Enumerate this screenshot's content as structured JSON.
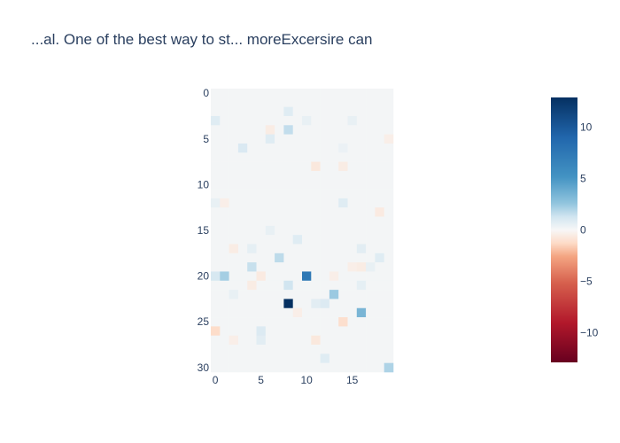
{
  "chart_data": {
    "type": "heatmap",
    "title": "...al. One of the best way to st... moreExcersire can",
    "x_ticks": [
      0,
      5,
      10,
      15
    ],
    "y_ticks": [
      0,
      5,
      10,
      15,
      20,
      25,
      30
    ],
    "xlim": [
      -0.5,
      19.5
    ],
    "ylim": [
      -0.5,
      30.5
    ],
    "rows": 31,
    "cols": 20,
    "baseline": 0.15,
    "colorscale": "RdBu",
    "zmin": -12.9,
    "zmax": 12.9,
    "colorbar_ticks": [
      10,
      5,
      0,
      -5,
      -10
    ],
    "cells": [
      {
        "x": 8,
        "y": 23,
        "z": 12.9
      },
      {
        "x": 10,
        "y": 20,
        "z": 7.5
      },
      {
        "x": 16,
        "y": 24,
        "z": 3.4
      },
      {
        "x": 1,
        "y": 20,
        "z": 2.2
      },
      {
        "x": 13,
        "y": 22,
        "z": 2.4
      },
      {
        "x": 19,
        "y": 30,
        "z": 2.0
      },
      {
        "x": 8,
        "y": 4,
        "z": 1.6
      },
      {
        "x": 7,
        "y": 18,
        "z": 1.7
      },
      {
        "x": 4,
        "y": 19,
        "z": 1.5
      },
      {
        "x": 8,
        "y": 21,
        "z": 1.3
      },
      {
        "x": 0,
        "y": 20,
        "z": 1.1
      },
      {
        "x": 3,
        "y": 6,
        "z": 1.0
      },
      {
        "x": 0,
        "y": 3,
        "z": 0.8
      },
      {
        "x": 8,
        "y": 2,
        "z": 0.8
      },
      {
        "x": 6,
        "y": 5,
        "z": 0.8
      },
      {
        "x": 5,
        "y": 26,
        "z": 0.9
      },
      {
        "x": 9,
        "y": 16,
        "z": 0.8
      },
      {
        "x": 14,
        "y": 12,
        "z": 0.8
      },
      {
        "x": 12,
        "y": 23,
        "z": 0.9
      },
      {
        "x": 11,
        "y": 23,
        "z": 0.7
      },
      {
        "x": 16,
        "y": 17,
        "z": 0.7
      },
      {
        "x": 18,
        "y": 18,
        "z": 0.8
      },
      {
        "x": 12,
        "y": 29,
        "z": 0.8
      },
      {
        "x": 5,
        "y": 27,
        "z": 0.7
      },
      {
        "x": 4,
        "y": 17,
        "z": 0.6
      },
      {
        "x": 16,
        "y": 21,
        "z": 0.6
      },
      {
        "x": 0,
        "y": 12,
        "z": 0.5
      },
      {
        "x": 10,
        "y": 3,
        "z": 0.5
      },
      {
        "x": 15,
        "y": 3,
        "z": 0.5
      },
      {
        "x": 17,
        "y": 19,
        "z": 0.5
      },
      {
        "x": 2,
        "y": 22,
        "z": 0.5
      },
      {
        "x": 6,
        "y": 15,
        "z": 0.5
      },
      {
        "x": 14,
        "y": 6,
        "z": 0.4
      },
      {
        "x": 0,
        "y": 26,
        "z": -1.2
      },
      {
        "x": 14,
        "y": 25,
        "z": -1.1
      },
      {
        "x": 11,
        "y": 8,
        "z": -0.7
      },
      {
        "x": 11,
        "y": 27,
        "z": -0.7
      },
      {
        "x": 5,
        "y": 20,
        "z": -0.6
      },
      {
        "x": 18,
        "y": 13,
        "z": -0.6
      },
      {
        "x": 14,
        "y": 8,
        "z": -0.5
      },
      {
        "x": 16,
        "y": 19,
        "z": -0.5
      },
      {
        "x": 6,
        "y": 4,
        "z": -0.5
      },
      {
        "x": 2,
        "y": 17,
        "z": -0.5
      },
      {
        "x": 4,
        "y": 21,
        "z": -0.5
      },
      {
        "x": 1,
        "y": 12,
        "z": -0.4
      },
      {
        "x": 13,
        "y": 20,
        "z": -0.4
      },
      {
        "x": 9,
        "y": 24,
        "z": -0.4
      },
      {
        "x": 19,
        "y": 5,
        "z": -0.4
      },
      {
        "x": 2,
        "y": 27,
        "z": -0.4
      },
      {
        "x": 15,
        "y": 19,
        "z": -0.4
      }
    ]
  }
}
